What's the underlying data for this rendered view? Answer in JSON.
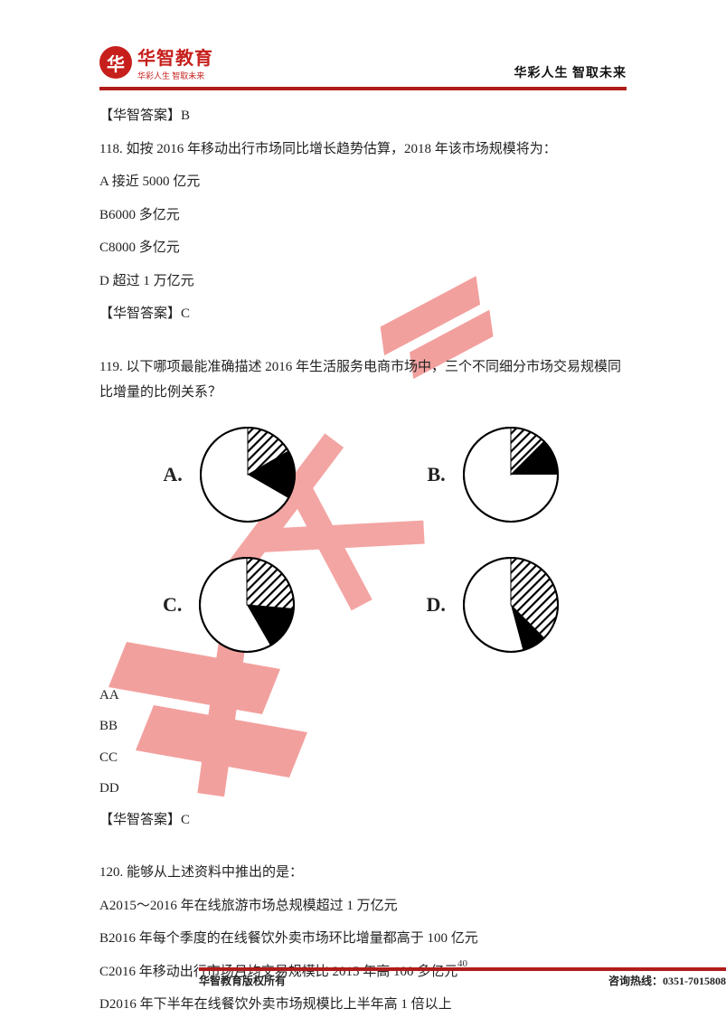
{
  "header": {
    "logo_char": "华",
    "logo_title": "华智教育",
    "logo_sub": "华彩人生 智取未来",
    "right": "华彩人生 智取未来"
  },
  "q117_answer": "【华智答案】B",
  "q118": {
    "stem": "118. 如按 2016 年移动出行市场同比增长趋势估算，2018 年该市场规模将为：",
    "A": "A 接近 5000 亿元",
    "B": "B6000 多亿元",
    "C": "C8000 多亿元",
    "D": "D 超过 1 万亿元",
    "answer": "【华智答案】C"
  },
  "q119": {
    "stem": "119. 以下哪项最能准确描述 2016 年生活服务电商市场中，三个不同细分市场交易规模同比增量的比例关系？",
    "labels": {
      "A": "A.",
      "B": "B.",
      "C": "C.",
      "D": "D."
    },
    "pies": {
      "stroke": "#000000",
      "stroke_width": 2,
      "bg": "#ffffff",
      "hatch_color": "#000000",
      "solid_color": "#000000",
      "A": {
        "hatch_deg": 60,
        "solid_deg": 60,
        "start": -90
      },
      "B": {
        "hatch_deg": 45,
        "solid_deg": 45,
        "start": -90
      },
      "C": {
        "hatch_deg": 95,
        "solid_deg": 55,
        "start": -90
      },
      "D": {
        "hatch_deg": 135,
        "solid_deg": 30,
        "start": -90
      }
    },
    "list": {
      "AA": "AA",
      "BB": "BB",
      "CC": "CC",
      "DD": "DD"
    },
    "answer": "【华智答案】C"
  },
  "q120": {
    "stem": "120. 能够从上述资料中推出的是：",
    "A": "A2015～2016 年在线旅游市场总规模超过 1 万亿元",
    "B": "B2016 年每个季度的在线餐饮外卖市场环比增量都高于 100 亿元",
    "C": "C2016 年移动出行市场月均交易规模比 2015 年高 100 多亿元",
    "D": "D2016 年下半年在线餐饮外卖市场规模比上半年高 1 倍以上"
  },
  "footer": {
    "left": "华智教育版权所有",
    "page": "40",
    "right": "咨询热线：0351-7015808"
  },
  "watermark": {
    "color": "#e53a36"
  }
}
